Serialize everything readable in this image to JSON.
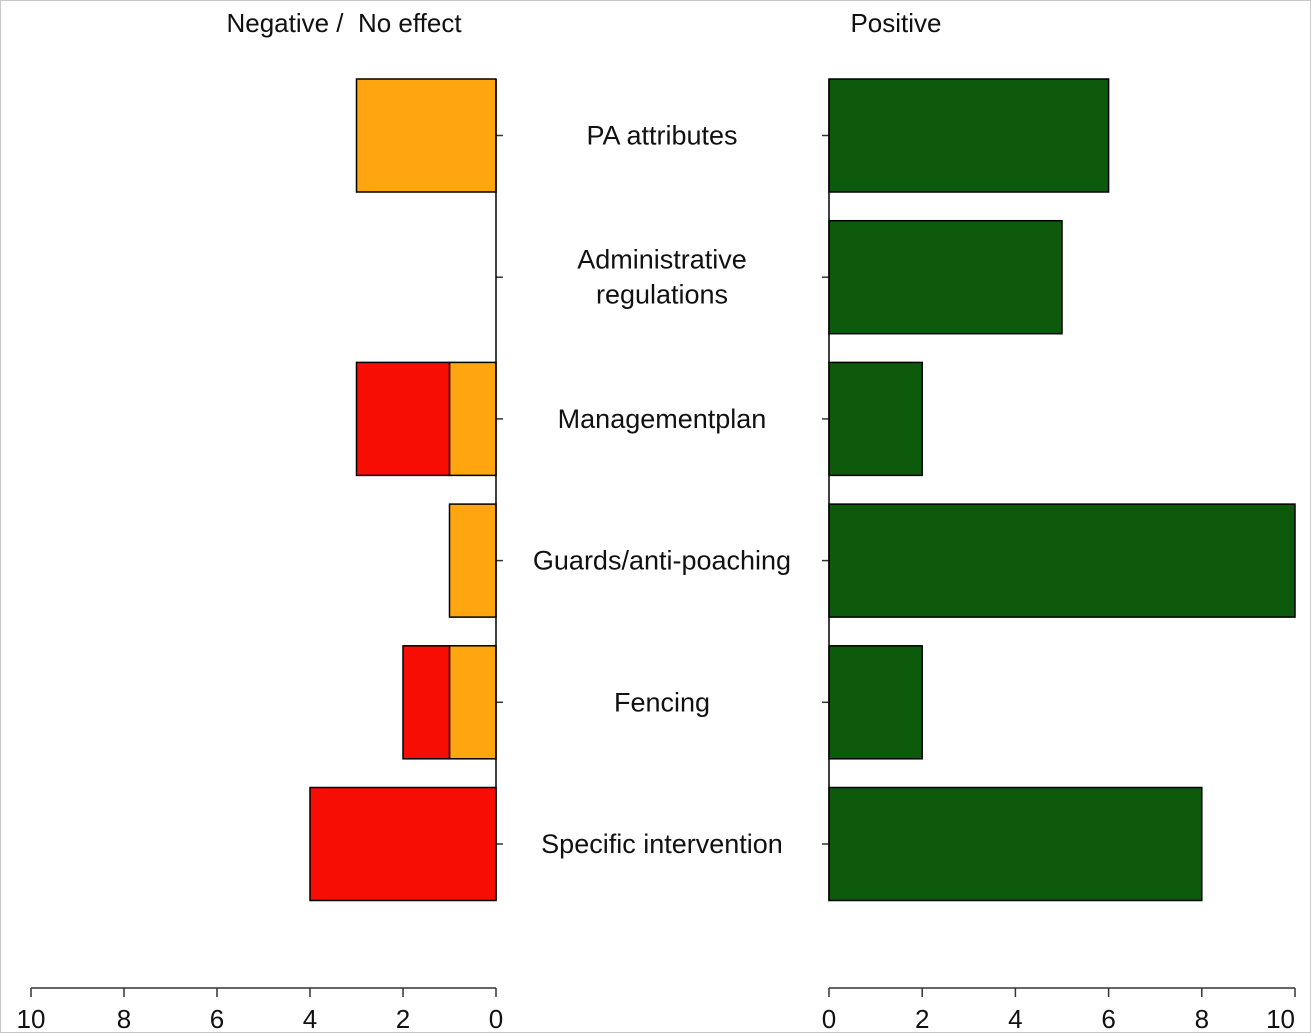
{
  "chart_data": {
    "type": "bar",
    "layout": "diverging-horizontal",
    "headers": {
      "left": "Negative /  No effect",
      "right": "Positive"
    },
    "categories": [
      "PA attributes",
      "Administrative regulations",
      "Managementplan",
      "Guards/anti-poaching",
      "Fencing",
      "Specific intervention"
    ],
    "category_lines": [
      [
        "PA attributes"
      ],
      [
        "Administrative",
        "regulations"
      ],
      [
        "Managementplan"
      ],
      [
        "Guards/anti-poaching"
      ],
      [
        "Fencing"
      ],
      [
        "Specific intervention"
      ]
    ],
    "series": [
      {
        "side": "left",
        "color": "#ffa510",
        "values": [
          3,
          0,
          1,
          1,
          1,
          0
        ]
      },
      {
        "side": "left",
        "color": "#f80d05",
        "values": [
          0,
          0,
          2,
          0,
          1,
          4
        ]
      },
      {
        "side": "right",
        "color": "#0d5a0d",
        "values": [
          6,
          5,
          2,
          10,
          2,
          8
        ]
      }
    ],
    "left_axis": {
      "ticks": [
        10,
        8,
        6,
        4,
        2,
        0
      ],
      "range": [
        10,
        0
      ]
    },
    "right_axis": {
      "ticks": [
        0,
        2,
        4,
        6,
        8,
        10
      ],
      "range": [
        0,
        10
      ]
    },
    "grid": false
  }
}
